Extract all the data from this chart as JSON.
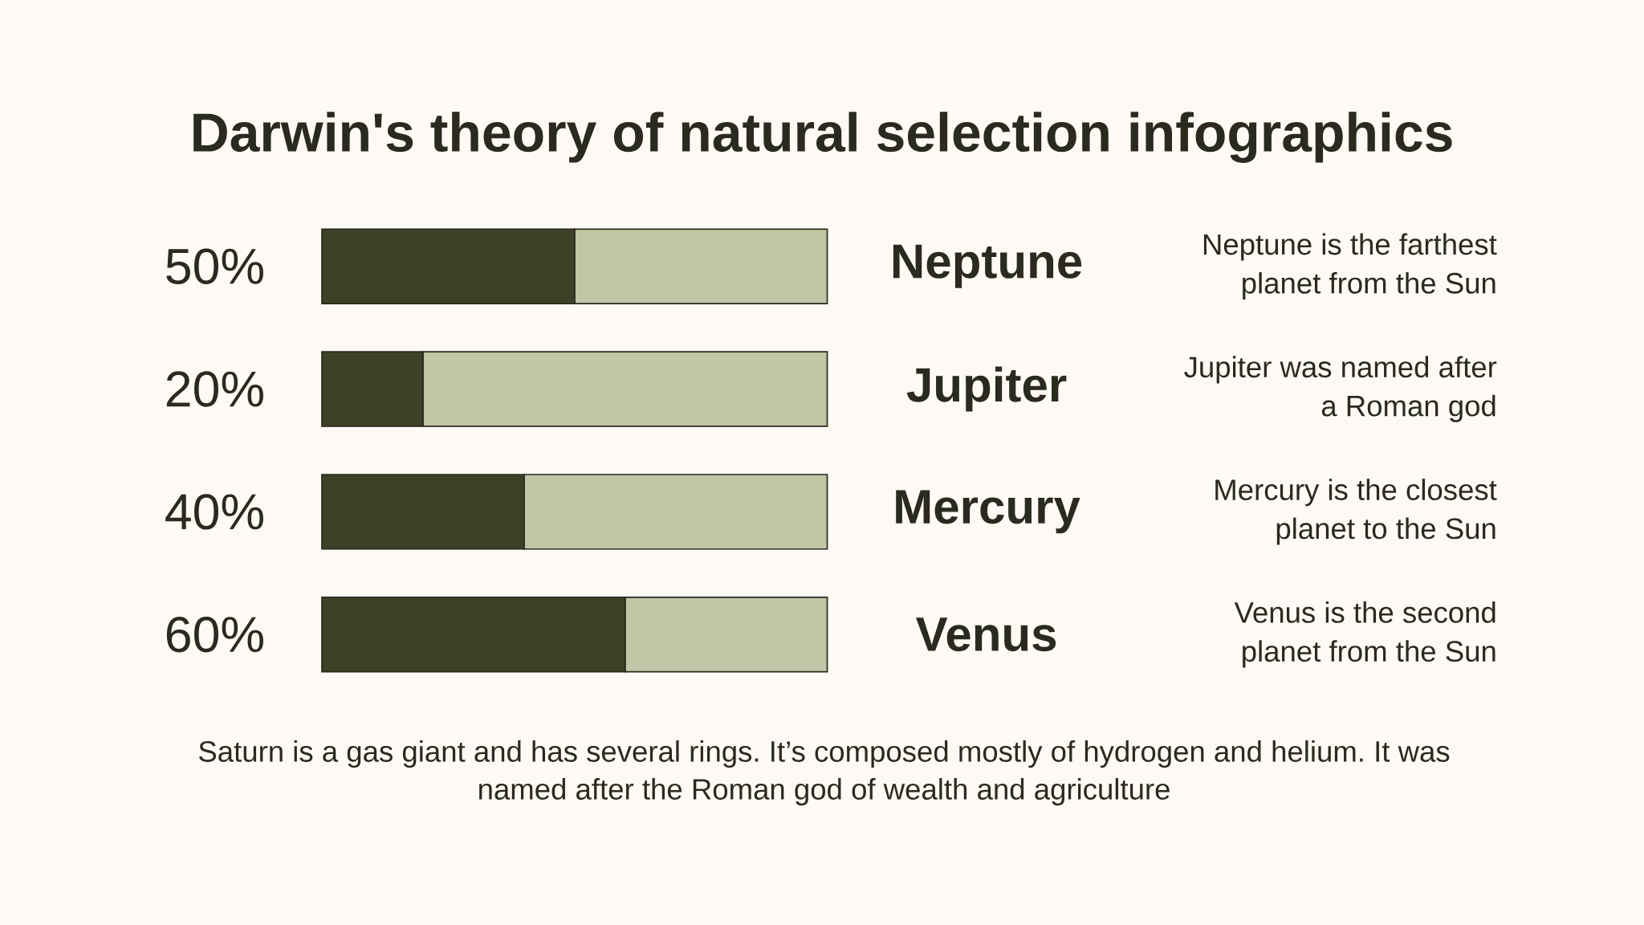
{
  "chart_data": {
    "type": "bar",
    "orientation": "horizontal",
    "stacked": true,
    "title": "Darwin's theory of natural selection infographics",
    "categories": [
      "Neptune",
      "Jupiter",
      "Mercury",
      "Venus"
    ],
    "series": [
      {
        "color": "#3d4126",
        "values": [
          50,
          20,
          40,
          60
        ],
        "value_labels": [
          "50%",
          "20%",
          "40%",
          "60%"
        ]
      },
      {
        "color": "#c1c6a6",
        "values": [
          50,
          80,
          60,
          40
        ]
      }
    ],
    "xlim": [
      0,
      100
    ],
    "tick_labels": "y",
    "annotations": [
      "Neptune is the farthest planet from the Sun",
      "Jupiter was named after a Roman god",
      "Mercury is the closest planet to the Sun",
      "Venus is the second planet from the Sun",
      "Saturn is a gas giant and has several rings. It’s composed mostly of hydrogen and helium. It was named after the Roman god of wealth and agriculture"
    ]
  }
}
